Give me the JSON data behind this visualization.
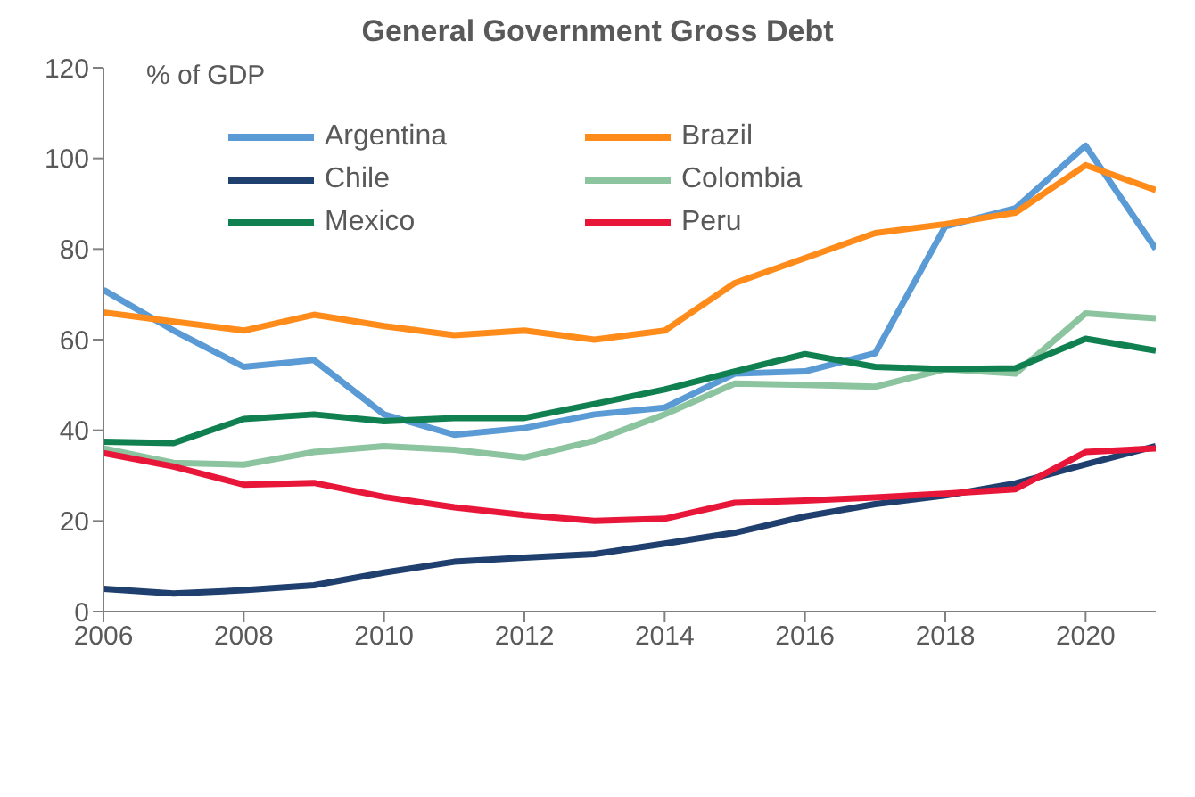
{
  "chart_data": {
    "type": "line",
    "title": "General Government Gross Debt",
    "ylabel": "% of GDP",
    "x": [
      2006,
      2007,
      2008,
      2009,
      2010,
      2011,
      2012,
      2013,
      2014,
      2015,
      2016,
      2017,
      2018,
      2019,
      2020,
      2021
    ],
    "series": [
      {
        "name": "Argentina",
        "color": "#5b9bd5",
        "values": [
          71,
          62,
          54,
          55.5,
          43.5,
          39,
          40.5,
          43.5,
          45,
          52.5,
          53,
          57,
          85,
          89,
          102.8,
          80
        ]
      },
      {
        "name": "Brazil",
        "color": "#ff8c1a",
        "values": [
          66,
          64,
          62,
          65.5,
          63,
          61,
          62,
          60,
          62,
          72.5,
          78,
          83.5,
          85.5,
          88,
          98.5,
          93
        ]
      },
      {
        "name": "Chile",
        "color": "#1f3f6e",
        "values": [
          5,
          4,
          4.7,
          5.8,
          8.6,
          11,
          11.9,
          12.7,
          15,
          17.4,
          21,
          23.7,
          25.6,
          28.3,
          32.5,
          36.5
        ]
      },
      {
        "name": "Colombia",
        "color": "#8dc4a0",
        "values": [
          36,
          32.8,
          32.4,
          35.2,
          36.5,
          35.7,
          34,
          37.7,
          43.5,
          50.3,
          50,
          49.6,
          53.5,
          52.5,
          65.8,
          64.7
        ]
      },
      {
        "name": "Mexico",
        "color": "#118050",
        "values": [
          37.5,
          37.2,
          42.5,
          43.5,
          42,
          42.7,
          42.7,
          45.8,
          49,
          53,
          56.8,
          54,
          53.5,
          53.7,
          60.2,
          57.6
        ]
      },
      {
        "name": "Peru",
        "color": "#e8173a",
        "values": [
          35,
          32,
          28,
          28.4,
          25.3,
          23,
          21.3,
          20,
          20.5,
          24,
          24.5,
          25.2,
          26,
          27,
          35.2,
          36
        ]
      }
    ],
    "xlim": [
      2006,
      2021
    ],
    "xticks": [
      2006,
      2008,
      2010,
      2012,
      2014,
      2016,
      2018,
      2020
    ],
    "ylim": [
      0,
      120
    ],
    "yticks": [
      0,
      20,
      40,
      60,
      80,
      100,
      120
    ],
    "grid": false,
    "legend": "top left",
    "marker": "none",
    "line_style": "solid"
  }
}
